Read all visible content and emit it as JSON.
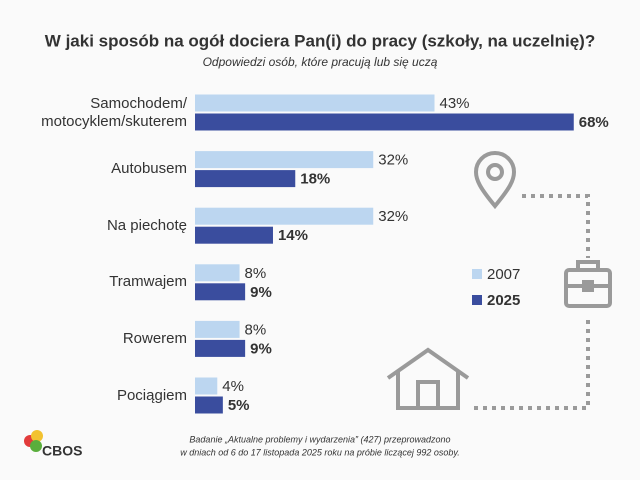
{
  "chart_data": {
    "type": "hbar",
    "title": "W jaki sposób na ogół dociera Pan(i) do pracy (szkoły, na uczelnię)?",
    "subtitle": "Odpowiedzi osób, które pracują lub się uczą",
    "categories": [
      "Samochodem/\nmotocyklem/skuterem",
      "Autobusem",
      "Na piechotę",
      "Tramwajem",
      "Rowerem",
      "Pociągiem"
    ],
    "series": [
      {
        "name": "2007",
        "color": "#bcd6f0",
        "values": [
          43,
          32,
          32,
          8,
          8,
          4
        ],
        "value_labels": [
          "43%",
          "32%",
          "32%",
          "8%",
          "8%",
          "4%"
        ]
      },
      {
        "name": "2025",
        "color": "#3a4d9e",
        "values": [
          68,
          18,
          14,
          9,
          9,
          5
        ],
        "value_labels": [
          "68%",
          "18%",
          "14%",
          "9%",
          "9%",
          "5%"
        ]
      }
    ],
    "note": [
      "Badanie „Aktualne problemy i wydarzenia” (427) przeprowadzono",
      "w dniach od 6 do 17 listopada 2025 roku na próbie liczącej 992 osoby."
    ],
    "source": "CBOS"
  }
}
